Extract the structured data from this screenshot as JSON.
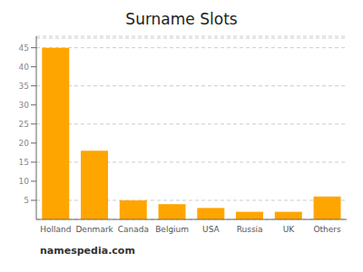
{
  "chart_data": {
    "type": "bar",
    "title": "Surname Slots",
    "categories": [
      "Holland",
      "Denmark",
      "Canada",
      "Belgium",
      "USA",
      "Russia",
      "UK",
      "Others"
    ],
    "values": [
      45,
      18,
      5,
      4,
      3,
      2,
      2,
      6
    ],
    "color": "#FFA500",
    "ylim": [
      0,
      48
    ],
    "yticks": [
      5,
      10,
      15,
      20,
      25,
      30,
      35,
      40,
      45
    ],
    "grid": true,
    "hlines": [
      47.5
    ],
    "annotations": [
      "namespedia.com"
    ]
  }
}
